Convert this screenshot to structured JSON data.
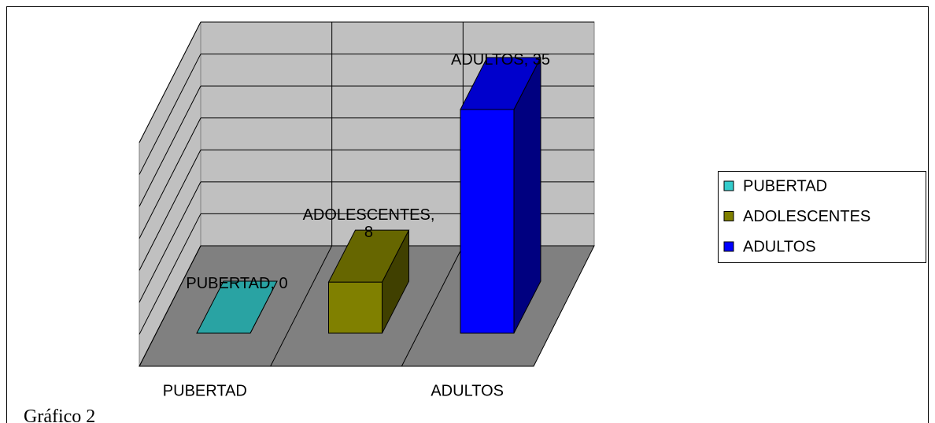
{
  "chart_data": {
    "type": "bar3d",
    "categories": [
      "PUBERTAD",
      "ADOLESCENTES",
      "ADULTOS"
    ],
    "values": [
      0,
      8,
      35
    ],
    "value_labels": [
      "PUBERTAD, 0",
      "ADOLESCENTES,\n8",
      "ADULTOS, 35"
    ],
    "colors": [
      "#33cccc",
      "#808000",
      "#0000ff"
    ],
    "ylim": [
      0,
      35
    ],
    "yticks": [
      0,
      5,
      10,
      15,
      20,
      25,
      30,
      35
    ],
    "grid": true,
    "legend": "right"
  },
  "caption": "Gráfico 2"
}
